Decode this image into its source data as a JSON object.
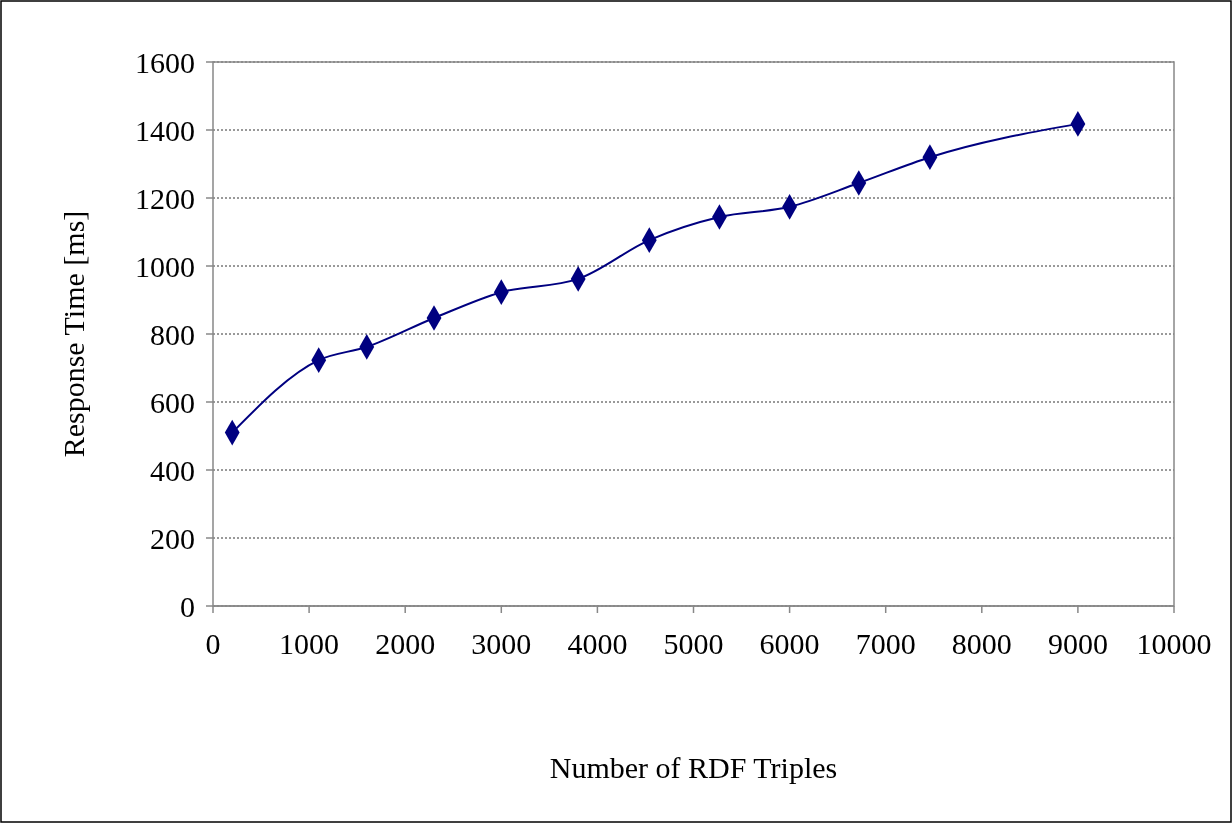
{
  "chart_data": {
    "type": "line",
    "xlabel": "Number of RDF Triples",
    "ylabel": "Response Time [ms]",
    "x": [
      200,
      1100,
      1600,
      2300,
      3000,
      3800,
      4540,
      5270,
      6000,
      6720,
      7460,
      9000
    ],
    "series": [
      {
        "color": "#000080",
        "values": [
          510,
          723,
          762,
          847,
          923,
          962,
          1076,
          1144,
          1174,
          1244,
          1320,
          1418
        ]
      }
    ],
    "xlim": [
      0,
      10000
    ],
    "xticks": [
      0,
      1000,
      2000,
      3000,
      4000,
      5000,
      6000,
      7000,
      8000,
      9000,
      10000
    ],
    "ylim": [
      0,
      1600
    ],
    "yticks": [
      0,
      200,
      400,
      600,
      800,
      1000,
      1200,
      1400,
      1600
    ],
    "grid": "y",
    "marker": "diamond",
    "line_style": "solid"
  }
}
